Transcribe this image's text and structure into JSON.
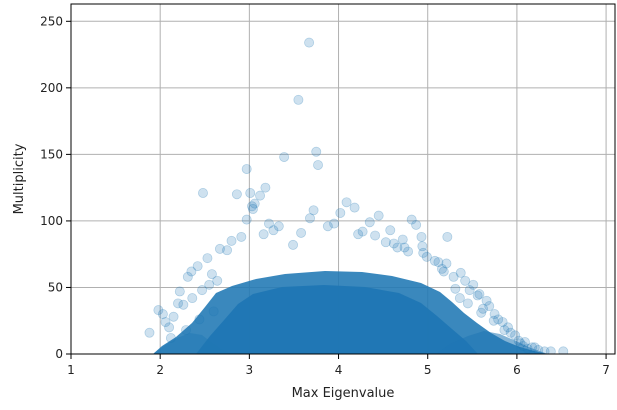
{
  "chart_data": {
    "type": "scatter",
    "title": "",
    "xlabel": "Max Eigenvalue",
    "ylabel": "Multiplicity",
    "xlim": [
      1,
      7.1
    ],
    "ylim": [
      0,
      263
    ],
    "x_ticks": [
      1,
      2,
      3,
      4,
      5,
      6,
      7
    ],
    "y_ticks": [
      0,
      50,
      100,
      150,
      200,
      250
    ],
    "x_tick_labels": [
      "1",
      "2",
      "3",
      "4",
      "5",
      "6",
      "7"
    ],
    "y_tick_labels": [
      "0",
      "50",
      "100",
      "150",
      "200",
      "250"
    ],
    "grid": true,
    "legend": "none",
    "series": [
      {
        "color": "#1f77b4",
        "alpha": 0.22,
        "x": [
          3.67,
          3.55,
          3.75,
          3.39,
          3.77,
          2.97,
          2.48,
          2.86,
          3.12,
          3.01,
          3.06,
          3.03,
          3.04,
          3.18,
          2.97,
          3.22,
          3.68,
          3.72,
          4.09,
          4.18,
          4.02,
          4.35,
          4.45,
          4.82,
          4.87,
          4.93,
          5.22,
          4.94,
          2.35,
          2.31,
          2.42,
          2.22,
          2.2,
          1.98,
          2.03,
          2.06,
          1.88,
          2.53,
          2.58,
          2.67,
          2.8,
          3.16,
          4.58,
          4.72,
          4.95,
          5.08,
          5.16,
          5.18,
          5.21,
          5.29,
          5.31,
          5.42,
          5.47,
          5.56,
          5.62,
          5.69,
          5.75,
          5.84,
          5.93,
          6.02,
          6.07,
          6.12,
          6.24,
          6.31,
          6.52,
          2.1,
          2.15,
          2.26,
          2.36,
          2.47,
          2.55,
          2.64,
          3.27,
          3.49,
          3.88,
          4.22,
          4.53,
          4.66,
          4.78,
          4.99,
          5.12,
          5.37,
          5.51,
          5.58,
          5.66,
          5.79,
          5.9,
          5.98,
          6.04,
          6.17,
          2.75,
          2.91,
          3.33,
          3.58,
          3.95,
          4.27,
          4.41,
          4.62,
          4.74,
          2.12,
          2.29,
          2.44,
          2.6,
          5.36,
          5.45,
          5.6,
          5.74,
          5.86,
          6.09,
          6.2,
          6.38
        ],
        "y": [
          234,
          191,
          152,
          148,
          142,
          139,
          121,
          120,
          119,
          121,
          113,
          111,
          109,
          125,
          101,
          98,
          102,
          108,
          114,
          110,
          106,
          99,
          104,
          101,
          97,
          88,
          88,
          81,
          62,
          58,
          66,
          47,
          38,
          33,
          30,
          24,
          16,
          72,
          60,
          79,
          85,
          90,
          93,
          86,
          76,
          70,
          64,
          62,
          68,
          58,
          49,
          55,
          48,
          44,
          34,
          36,
          30,
          24,
          16,
          10,
          6,
          4,
          3,
          2,
          2,
          20,
          28,
          37,
          42,
          48,
          52,
          55,
          93,
          82,
          96,
          90,
          84,
          80,
          77,
          73,
          69,
          61,
          52,
          45,
          40,
          26,
          20,
          14,
          8,
          5,
          78,
          88,
          96,
          91,
          98,
          92,
          89,
          83,
          80,
          12,
          18,
          26,
          32,
          42,
          38,
          31,
          25,
          18,
          9,
          5,
          2
        ]
      }
    ]
  }
}
